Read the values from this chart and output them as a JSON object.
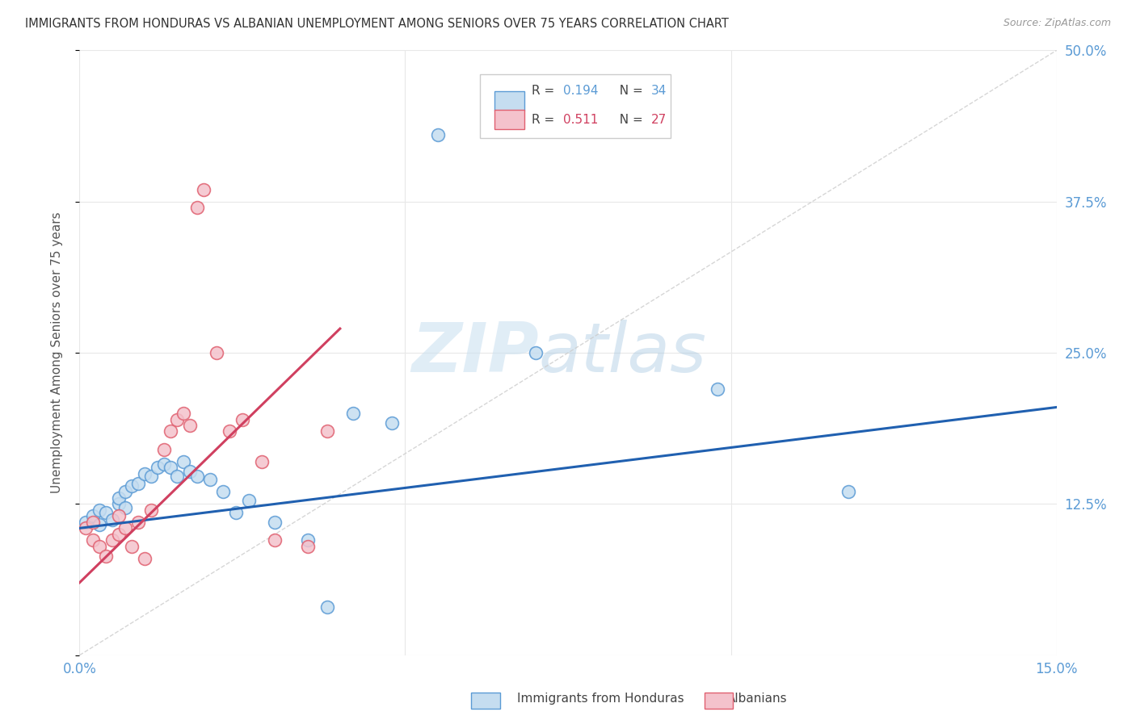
{
  "title": "IMMIGRANTS FROM HONDURAS VS ALBANIAN UNEMPLOYMENT AMONG SENIORS OVER 75 YEARS CORRELATION CHART",
  "source": "Source: ZipAtlas.com",
  "ylabel": "Unemployment Among Seniors over 75 years",
  "xlim": [
    0.0,
    0.15
  ],
  "ylim": [
    0.0,
    0.5
  ],
  "xticks": [
    0.0,
    0.05,
    0.1,
    0.15
  ],
  "xtick_labels": [
    "0.0%",
    "",
    "",
    "15.0%"
  ],
  "yticks": [
    0.0,
    0.125,
    0.25,
    0.375,
    0.5
  ],
  "ytick_labels_right": [
    "",
    "12.5%",
    "25.0%",
    "37.5%",
    "50.0%"
  ],
  "blue_R": 0.194,
  "blue_N": 34,
  "pink_R": 0.511,
  "pink_N": 27,
  "blue_color": "#c5ddf0",
  "blue_edge_color": "#5b9bd5",
  "pink_color": "#f4c2cc",
  "pink_edge_color": "#e06070",
  "blue_line_color": "#2060b0",
  "pink_line_color": "#d04060",
  "background_color": "#ffffff",
  "grid_color": "#e8e8e8",
  "watermark_color": "#d8e8f0",
  "blue_scatter_x": [
    0.001,
    0.002,
    0.003,
    0.003,
    0.004,
    0.005,
    0.006,
    0.006,
    0.007,
    0.007,
    0.008,
    0.009,
    0.01,
    0.011,
    0.012,
    0.013,
    0.014,
    0.015,
    0.016,
    0.017,
    0.018,
    0.02,
    0.022,
    0.024,
    0.026,
    0.03,
    0.035,
    0.038,
    0.042,
    0.048,
    0.055,
    0.07,
    0.098,
    0.118
  ],
  "blue_scatter_y": [
    0.11,
    0.115,
    0.108,
    0.12,
    0.118,
    0.112,
    0.125,
    0.13,
    0.122,
    0.135,
    0.14,
    0.142,
    0.15,
    0.148,
    0.155,
    0.158,
    0.155,
    0.148,
    0.16,
    0.152,
    0.148,
    0.145,
    0.135,
    0.118,
    0.128,
    0.11,
    0.095,
    0.04,
    0.2,
    0.192,
    0.43,
    0.25,
    0.22,
    0.135
  ],
  "pink_scatter_x": [
    0.001,
    0.002,
    0.002,
    0.003,
    0.004,
    0.005,
    0.006,
    0.006,
    0.007,
    0.008,
    0.009,
    0.01,
    0.011,
    0.013,
    0.014,
    0.015,
    0.016,
    0.017,
    0.018,
    0.019,
    0.021,
    0.023,
    0.025,
    0.028,
    0.03,
    0.035,
    0.038
  ],
  "pink_scatter_y": [
    0.105,
    0.095,
    0.11,
    0.09,
    0.082,
    0.095,
    0.1,
    0.115,
    0.105,
    0.09,
    0.11,
    0.08,
    0.12,
    0.17,
    0.185,
    0.195,
    0.2,
    0.19,
    0.37,
    0.385,
    0.25,
    0.185,
    0.195,
    0.16,
    0.095,
    0.09,
    0.185
  ],
  "blue_trendline_x": [
    0.0,
    0.15
  ],
  "blue_trendline_y": [
    0.105,
    0.205
  ],
  "pink_trendline_x": [
    0.0,
    0.04
  ],
  "pink_trendline_y": [
    0.06,
    0.27
  ],
  "ref_line_x": [
    0.0,
    0.15
  ],
  "ref_line_y": [
    0.0,
    0.5
  ],
  "legend_labels": [
    "Immigrants from Honduras",
    "Albanians"
  ]
}
